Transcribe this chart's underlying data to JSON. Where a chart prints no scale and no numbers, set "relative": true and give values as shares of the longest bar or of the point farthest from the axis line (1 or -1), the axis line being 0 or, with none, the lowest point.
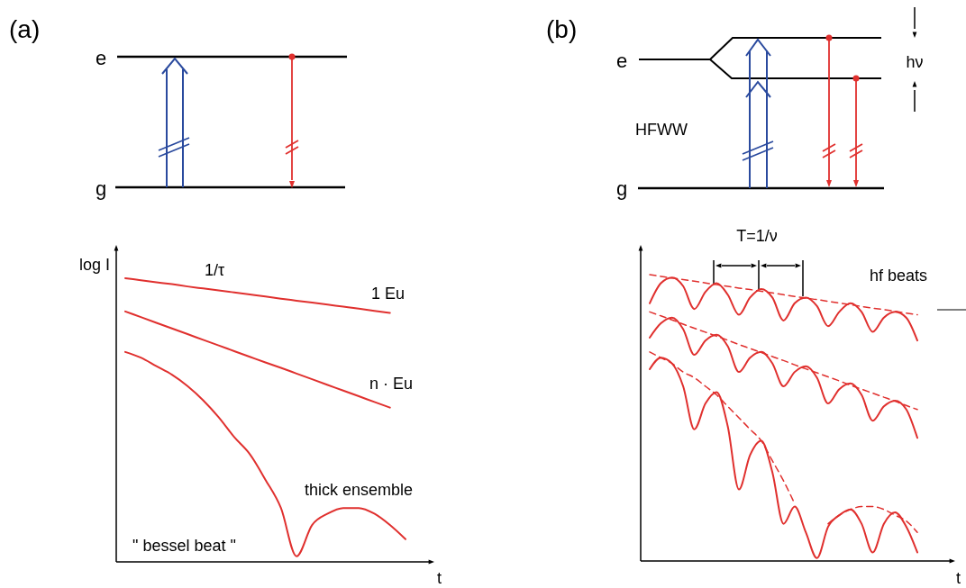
{
  "chart_data": [
    {
      "type": "line",
      "relative": true,
      "ylabel": "log I",
      "xlabel": "t",
      "categories": [
        null,
        null,
        null,
        null,
        null,
        null,
        null,
        null,
        null,
        null,
        null,
        null,
        null,
        null,
        null,
        null,
        null,
        null,
        null
      ],
      "series": [
        {
          "color": "#e0302e",
          "line_style": "solid",
          "values": [
            1.0,
            0.993,
            0.986,
            0.979,
            0.971,
            0.964,
            0.957,
            0.95,
            0.943,
            0.936,
            0.928,
            0.921,
            0.914,
            0.907,
            0.9,
            0.893,
            0.885,
            0.878,
            null
          ]
        },
        {
          "color": "#e0302e",
          "line_style": "solid",
          "values": [
            0.883,
            0.863,
            0.843,
            0.823,
            0.803,
            0.783,
            0.763,
            0.743,
            0.723,
            0.703,
            0.684,
            0.664,
            0.644,
            0.624,
            0.604,
            0.584,
            0.564,
            0.544,
            null
          ]
        },
        {
          "color": "#e0302e",
          "line_style": "solid",
          "values": [
            0.74,
            0.72,
            0.69,
            0.66,
            0.62,
            0.57,
            0.51,
            0.44,
            0.38,
            0.29,
            0.19,
            0.02,
            0.13,
            0.17,
            0.19,
            0.19,
            0.17,
            0.13,
            0.08
          ]
        }
      ],
      "annotations": [
        "(a)",
        "e",
        "g",
        "1/τ",
        "1  Eu",
        "n · Eu",
        "thick ensemble",
        "\" bessel beat \""
      ]
    },
    {
      "type": "line",
      "relative": true,
      "xlabel": "t",
      "categories": [
        null,
        null,
        null,
        null,
        null,
        null,
        null,
        null,
        null,
        null,
        null,
        null,
        null,
        null,
        null,
        null,
        null,
        null,
        null,
        null,
        null,
        null,
        null,
        null,
        null
      ],
      "series": [
        {
          "color": "#e0302e",
          "line_style": "solid",
          "values": [
            0.9,
            0.97,
            0.99,
            0.96,
            0.88,
            0.94,
            0.97,
            0.93,
            0.86,
            0.92,
            0.95,
            0.92,
            0.84,
            0.9,
            0.92,
            0.89,
            0.82,
            0.87,
            0.9,
            0.87,
            0.8,
            0.85,
            0.87,
            0.85,
            0.77
          ]
        },
        {
          "color": "#e0302e",
          "line_style": "solid",
          "values": [
            0.78,
            0.83,
            0.85,
            0.81,
            0.72,
            0.77,
            0.79,
            0.75,
            0.66,
            0.71,
            0.73,
            0.69,
            0.61,
            0.66,
            0.68,
            0.64,
            0.55,
            0.6,
            0.62,
            0.58,
            0.49,
            0.54,
            0.56,
            0.53,
            0.43
          ]
        },
        {
          "color": "#e0302e",
          "line_style": "solid",
          "values": [
            0.67,
            0.71,
            0.69,
            0.61,
            0.46,
            0.55,
            0.59,
            0.47,
            0.25,
            0.37,
            0.42,
            0.31,
            0.13,
            0.19,
            0.1,
            0.01,
            0.12,
            0.16,
            0.18,
            0.13,
            0.03,
            0.13,
            0.17,
            0.12,
            0.03
          ]
        },
        {
          "color": "#e0302e",
          "line_style": "dashed",
          "values": [
            1.0,
            0.994,
            0.988,
            0.983,
            0.977,
            0.971,
            0.965,
            0.959,
            0.953,
            0.948,
            0.942,
            0.936,
            0.93,
            0.924,
            0.918,
            0.913,
            0.907,
            0.901,
            0.895,
            0.889,
            0.883,
            0.878,
            0.872,
            0.866,
            0.86
          ]
        },
        {
          "color": "#e0302e",
          "line_style": "dashed",
          "values": [
            0.87,
            0.856,
            0.842,
            0.827,
            0.813,
            0.799,
            0.785,
            0.771,
            0.756,
            0.742,
            0.728,
            0.714,
            0.7,
            0.685,
            0.671,
            0.657,
            0.643,
            0.629,
            0.614,
            0.6,
            0.586,
            0.572,
            0.558,
            0.543,
            0.529
          ]
        },
        {
          "color": "#e0302e",
          "line_style": "dashed",
          "values": [
            0.73,
            0.71,
            0.69,
            0.66,
            0.64,
            0.61,
            0.58,
            0.54,
            0.5,
            0.46,
            0.42,
            0.35,
            0.28,
            0.2,
            null,
            null,
            0.13,
            0.16,
            0.18,
            0.19,
            0.19,
            0.18,
            0.16,
            0.14,
            0.1
          ]
        }
      ],
      "annotations": [
        "(b)",
        "e",
        "g",
        "HFWW",
        "hν",
        "T=1/ν",
        "hf beats"
      ]
    }
  ]
}
